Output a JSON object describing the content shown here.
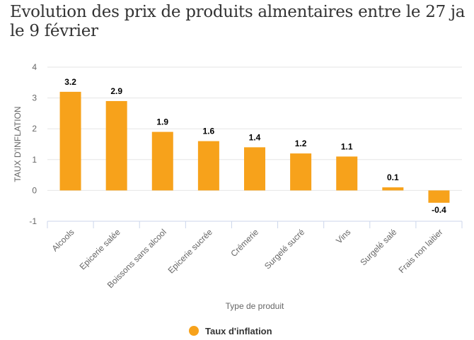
{
  "title_lines": [
    "Evolution des prix de produits almentaires entre le 27 ja",
    "le 9 février"
  ],
  "chart_data": {
    "type": "bar",
    "categories": [
      "Alcools",
      "Epicerie salée",
      "Boissons sans alcool",
      "Epicerie sucrée",
      "Crémerie",
      "Surgelé sucré",
      "Vins",
      "Surgelé salé",
      "Frais non laitier"
    ],
    "series": [
      {
        "name": "Taux d'inflation",
        "values": [
          3.2,
          2.9,
          1.9,
          1.6,
          1.4,
          1.2,
          1.1,
          0.1,
          -0.4
        ],
        "color": "#f7a21b"
      }
    ],
    "data_labels": [
      "3.2",
      "2.9",
      "1.9",
      "1.6",
      "1.4",
      "1.2",
      "1.1",
      "0.1",
      "-0.4"
    ],
    "xlabel": "Type de produit",
    "ylabel": "TAUX D'INFLATION",
    "ylim": [
      -1,
      4
    ],
    "yticks": [
      "-1",
      "0",
      "1",
      "2",
      "3",
      "4"
    ],
    "grid": true,
    "legend_placement": "bottom"
  }
}
